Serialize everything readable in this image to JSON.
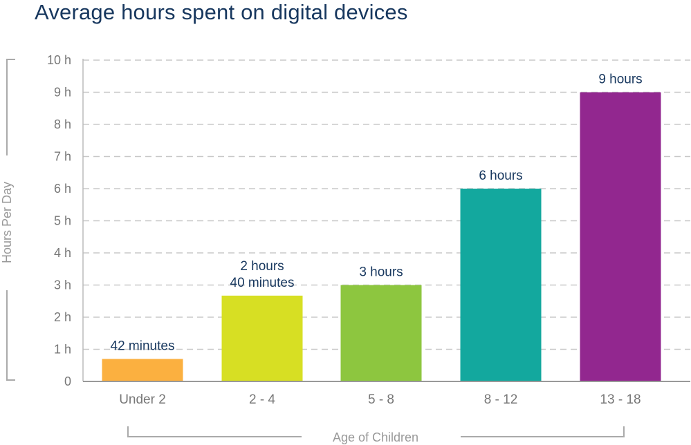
{
  "chart_data": {
    "type": "bar",
    "title": "Average hours spent on digital devices",
    "xlabel": "Age of Children",
    "ylabel": "Hours Per Day",
    "ylim": [
      0,
      10
    ],
    "yticks": [
      {
        "value": 0,
        "label": "0"
      },
      {
        "value": 1,
        "label": "1 h"
      },
      {
        "value": 2,
        "label": "2 h"
      },
      {
        "value": 3,
        "label": "3 h"
      },
      {
        "value": 4,
        "label": "4 h"
      },
      {
        "value": 5,
        "label": "5 h"
      },
      {
        "value": 6,
        "label": "6 h"
      },
      {
        "value": 7,
        "label": "7 h"
      },
      {
        "value": 8,
        "label": "8 h"
      },
      {
        "value": 9,
        "label": "9 h"
      },
      {
        "value": 10,
        "label": "10 h"
      }
    ],
    "categories": [
      "Under 2",
      "2 - 4",
      "5 - 8",
      "8 - 12",
      "13 - 18"
    ],
    "values": [
      0.7,
      2.67,
      3,
      6,
      9
    ],
    "data_labels": [
      [
        "42 minutes"
      ],
      [
        "2 hours",
        "40 minutes"
      ],
      [
        "3 hours"
      ],
      [
        "6 hours"
      ],
      [
        "9 hours"
      ]
    ],
    "colors": [
      "#fbb040",
      "#d7df23",
      "#8dc63f",
      "#13a89e",
      "#92278f"
    ],
    "grid": true
  }
}
